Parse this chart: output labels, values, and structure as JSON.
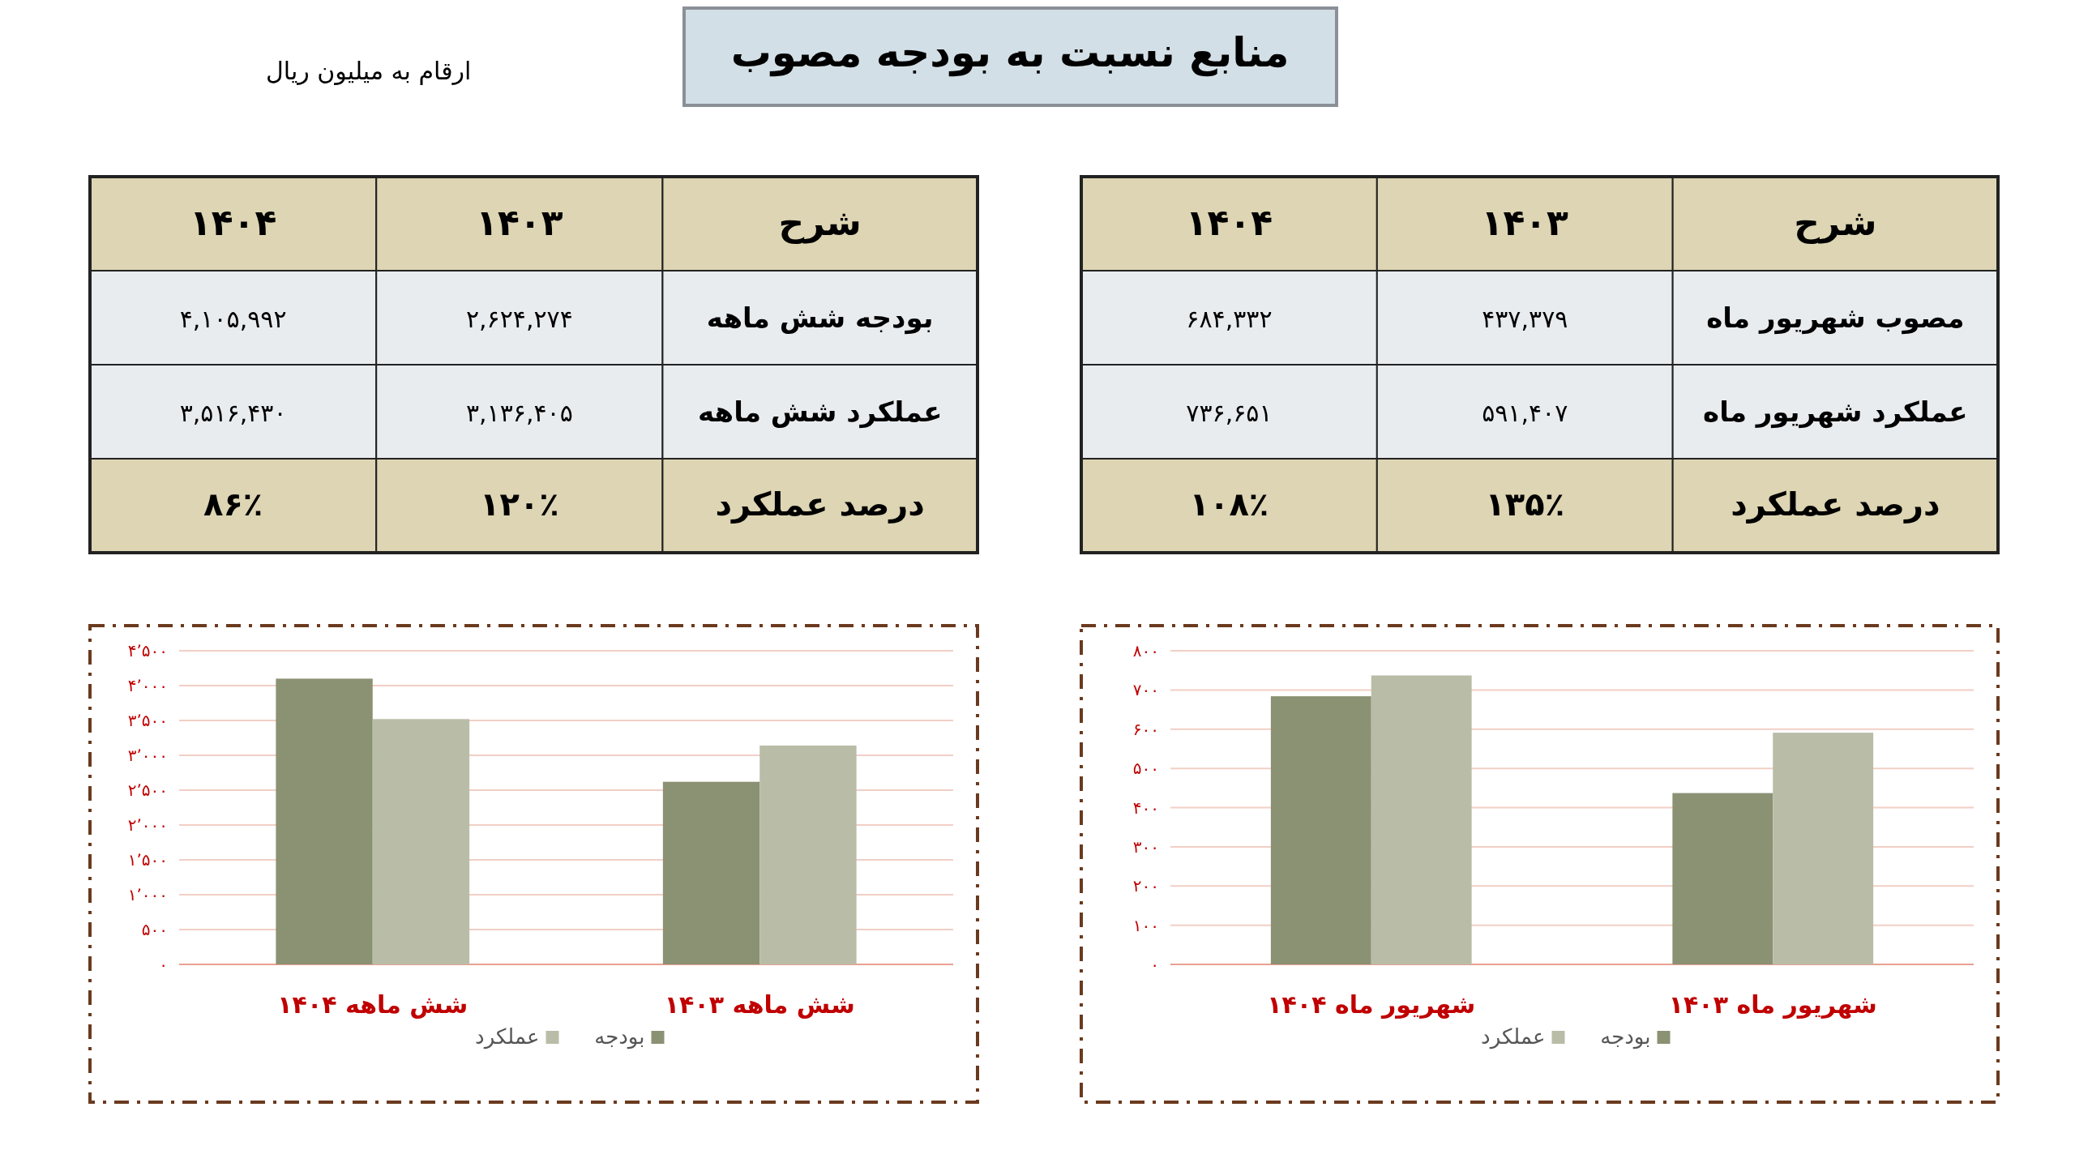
{
  "chart_data": [
    {
      "type": "other",
      "title": "منابع نسبت به بودجه مصوب",
      "annotations": [
        "ارقام به میلیون ریال"
      ]
    },
    {
      "type": "other",
      "categories": [
        "۱۴۰۴",
        "۱۴۰۳",
        "شرح"
      ],
      "annotations": [
        "۶۸۴,۳۳۲",
        "۴۳۷,۳۷۹",
        "مصوب شهریور ماه",
        "۷۳۶,۶۵۱",
        "۵۹۱,۴۰۷",
        "عملکرد شهریور ماه",
        "۱۰۸٪",
        "۱۳۵٪",
        "درصد عملکرد"
      ]
    },
    {
      "type": "other",
      "categories": [
        "۱۴۰۴",
        "۱۴۰۳",
        "شرح"
      ],
      "annotations": [
        "۴,۱۰۵,۹۹۲",
        "۲,۶۲۴,۲۷۴",
        "بودجه شش ماهه",
        "۳,۵۱۶,۴۳۰",
        "۳,۱۳۶,۴۰۵",
        "عملکرد شش ماهه",
        "۸۶٪",
        "۱۲۰٪",
        "درصد عملکرد"
      ]
    },
    {
      "type": "bar",
      "categories": [
        "شهریور ماه ۱۴۰۴",
        "شهریور ماه ۱۴۰۳"
      ],
      "series": [
        {
          "name": "بودجه",
          "color": "#8b9173",
          "values": [
            684,
            437
          ]
        },
        {
          "name": "عملکرد",
          "color": "#b9bda7",
          "values": [
            737,
            591
          ]
        }
      ],
      "ylim": [
        0,
        800
      ],
      "yticks": [
        {
          "value": 0,
          "label": "۰"
        },
        {
          "value": 100,
          "label": "۱۰۰"
        },
        {
          "value": 200,
          "label": "۲۰۰"
        },
        {
          "value": 300,
          "label": "۳۰۰"
        },
        {
          "value": 400,
          "label": "۴۰۰"
        },
        {
          "value": 500,
          "label": "۵۰۰"
        },
        {
          "value": 600,
          "label": "۶۰۰"
        },
        {
          "value": 700,
          "label": "۷۰۰"
        },
        {
          "value": 800,
          "label": "۸۰۰"
        }
      ],
      "grid": "y",
      "legend": "bottom"
    },
    {
      "type": "bar",
      "categories": [
        "شش ماهه ۱۴۰۴",
        "شش ماهه ۱۴۰۳"
      ],
      "series": [
        {
          "name": "بودجه",
          "color": "#8b9173",
          "values": [
            4100,
            2620
          ]
        },
        {
          "name": "عملکرد",
          "color": "#b9bda7",
          "values": [
            3520,
            3140
          ]
        }
      ],
      "ylim": [
        0,
        4500
      ],
      "yticks": [
        {
          "value": 0,
          "label": "۰"
        },
        {
          "value": 500,
          "label": "۵۰۰"
        },
        {
          "value": 1000,
          "label": "۱٬۰۰۰"
        },
        {
          "value": 1500,
          "label": "۱٬۵۰۰"
        },
        {
          "value": 2000,
          "label": "۲٬۰۰۰"
        },
        {
          "value": 2500,
          "label": "۲٬۵۰۰"
        },
        {
          "value": 3000,
          "label": "۳٬۰۰۰"
        },
        {
          "value": 3500,
          "label": "۳٬۵۰۰"
        },
        {
          "value": 4000,
          "label": "۴٬۰۰۰"
        },
        {
          "value": 4500,
          "label": "۴٬۵۰۰"
        }
      ],
      "grid": "y",
      "legend": "bottom"
    }
  ]
}
